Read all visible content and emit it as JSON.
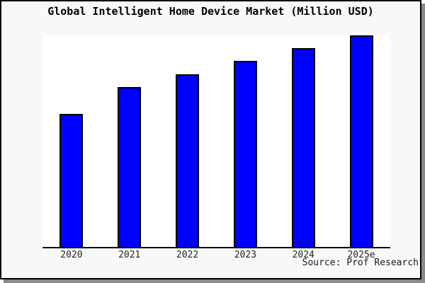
{
  "window": {
    "background_color": "#f8f8f8",
    "border_color": "#000000",
    "shadow_color": "#8a8a8a",
    "plot_background_color": "#ffffff"
  },
  "chart_data": {
    "type": "bar",
    "title": "Global Intelligent Home Device Market (Million USD)",
    "categories": [
      "2020",
      "2021",
      "2022",
      "2023",
      "2024",
      "2025e"
    ],
    "values": [
      63,
      75.5,
      81.5,
      88,
      94,
      100
    ],
    "value_scale_note": "no y-axis or data labels shown; values are relative bar heights estimated from pixels with 2025e = 100",
    "xlabel": "",
    "ylabel": "",
    "ylim": [
      0,
      100
    ],
    "grid": false,
    "legend": false,
    "bar_color": "#0000ff",
    "bar_border_color": "#000000",
    "axis_color": "#000000",
    "tick_label_color": "#262626",
    "source_label": "Source: Prof Research"
  }
}
